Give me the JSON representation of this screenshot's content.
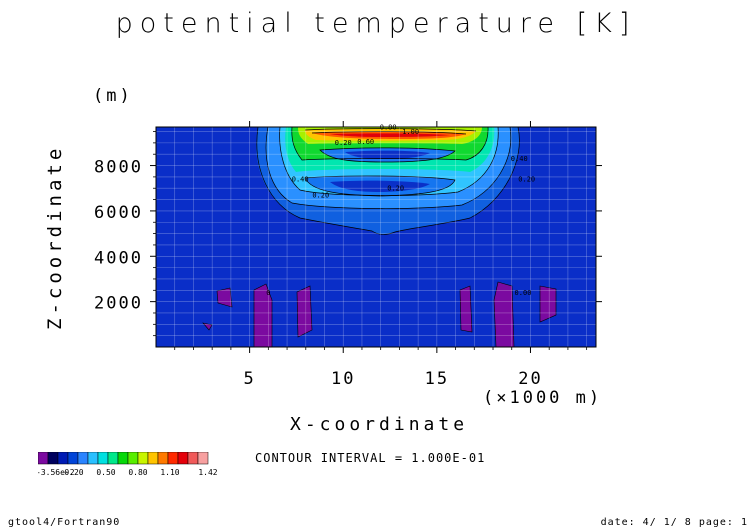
{
  "title": "potential temperature [K]",
  "footer": {
    "left": "gtool4/Fortran90",
    "right": "date: 4/ 1/ 8 page: 1"
  },
  "contour_interval": "CONTOUR INTERVAL = 1.000E-01",
  "chart_data": {
    "type": "heatmap",
    "title": "potential temperature [K]",
    "xlabel": "X-coordinate",
    "x_unit": "(×1000 m)",
    "ylabel": "Z-coordinate",
    "y_unit": "(m)",
    "xlim": [
      0,
      23.5
    ],
    "ylim": [
      0,
      9700
    ],
    "x_ticks": [
      5,
      10,
      15,
      20
    ],
    "x_tick_labels": [
      "5",
      "10",
      "15",
      "20"
    ],
    "y_ticks": [
      2000,
      4000,
      6000,
      8000
    ],
    "y_tick_labels": [
      "2000",
      "4000",
      "6000",
      "8000"
    ],
    "grid": true,
    "contour_labels": [
      {
        "text": "0.40",
        "x": 7.7,
        "y": 7300
      },
      {
        "text": "0.20",
        "x": 8.8,
        "y": 6600
      },
      {
        "text": "0.20",
        "x": 12.8,
        "y": 6900
      },
      {
        "text": "0.40",
        "x": 19.4,
        "y": 8200
      },
      {
        "text": "0.20",
        "x": 19.8,
        "y": 7300
      },
      {
        "text": "0.20",
        "x": 10.0,
        "y": 8900
      },
      {
        "text": "0.80",
        "x": 12.4,
        "y": 9600
      },
      {
        "text": "1.00",
        "x": 13.6,
        "y": 9400
      },
      {
        "text": "0.60",
        "x": 11.2,
        "y": 8950
      },
      {
        "text": "0",
        "x": 6.0,
        "y": 2300
      },
      {
        "text": "0.00",
        "x": 19.6,
        "y": 2300
      }
    ],
    "colorbar": {
      "colors": [
        "#7b0aa0",
        "#00005e",
        "#001bb4",
        "#0044d8",
        "#2a84ff",
        "#29c0ff",
        "#00e0e0",
        "#00e88a",
        "#06d80a",
        "#58ee00",
        "#c8f500",
        "#ffc400",
        "#ff7a00",
        "#ff2a00",
        "#e4000a",
        "#f05a5a",
        "#f7a0a0"
      ],
      "tick_labels": [
        "-3.56e-2",
        "0.20",
        "0.50",
        "0.80",
        "1.10",
        "1.42"
      ],
      "min": -0.0356,
      "max": 1.42
    }
  }
}
